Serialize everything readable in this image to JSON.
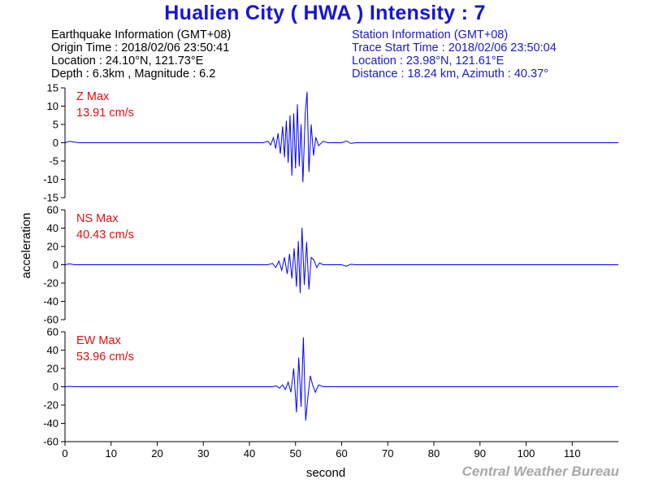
{
  "title": "Hualien City ( HWA ) Intensity : 7",
  "earthquake_info": {
    "heading": "Earthquake Information  (GMT+08)",
    "origin_time": "Origin Time : 2018/02/06 23:50:41",
    "location": "Location : 24.10°N, 121.73°E",
    "depth_magnitude": "Depth : 6.3km , Magnitude : 6.2"
  },
  "station_info": {
    "heading": "Station Information  (GMT+08)",
    "trace_start": "Trace Start Time : 2018/02/06 23:50:04",
    "location": "Location : 23.98°N, 121.61°E",
    "distance_azimuth": "Distance : 18.24 km, Azimuth : 40.37°"
  },
  "credit": "Central Weather Bureau",
  "colors": {
    "title": "#1515d8",
    "trace": "#0000ff",
    "max_label": "#e01010",
    "station": "#1a1acc",
    "credit": "#a8a8a8"
  },
  "chart_data": {
    "type": "line",
    "xlabel": "second",
    "ylabel": "acceleration",
    "xlim": [
      0,
      120
    ],
    "xticks": [
      0,
      10,
      20,
      30,
      40,
      50,
      60,
      70,
      80,
      90,
      100,
      110
    ],
    "panels": [
      {
        "name": "Z",
        "max_label": "Z Max",
        "max_value": "13.91 cm/s",
        "ylim": [
          -15,
          15
        ],
        "yticks": [
          15,
          10,
          5,
          0,
          -5,
          -10,
          -15
        ],
        "peak": 13.91,
        "points": [
          [
            0,
            0
          ],
          [
            1,
            0.4
          ],
          [
            2,
            0.2
          ],
          [
            3,
            0
          ],
          [
            43,
            0
          ],
          [
            44,
            0.4
          ],
          [
            44.6,
            -0.6
          ],
          [
            45.2,
            1.4
          ],
          [
            45.7,
            -1.6
          ],
          [
            46.2,
            2.6
          ],
          [
            46.7,
            -3
          ],
          [
            47.2,
            4.5
          ],
          [
            47.6,
            -4
          ],
          [
            48,
            6
          ],
          [
            48.4,
            -5.5
          ],
          [
            48.8,
            7.5
          ],
          [
            49.2,
            -9
          ],
          [
            49.6,
            8
          ],
          [
            50,
            -7
          ],
          [
            50.4,
            10.5
          ],
          [
            50.8,
            -6.5
          ],
          [
            51.2,
            5
          ],
          [
            51.6,
            -10.8
          ],
          [
            52.1,
            8
          ],
          [
            52.5,
            13.91
          ],
          [
            52.9,
            -8
          ],
          [
            53.4,
            5
          ],
          [
            53.9,
            -3.5
          ],
          [
            54.4,
            1.5
          ],
          [
            55,
            -0.8
          ],
          [
            56,
            0.4
          ],
          [
            57,
            0
          ],
          [
            60,
            0
          ],
          [
            61,
            0.5
          ],
          [
            62,
            -0.2
          ],
          [
            63,
            0
          ],
          [
            120,
            0
          ]
        ]
      },
      {
        "name": "NS",
        "max_label": "NS Max",
        "max_value": "40.43 cm/s",
        "ylim": [
          -60,
          60
        ],
        "yticks": [
          60,
          40,
          20,
          0,
          -20,
          -40,
          -60
        ],
        "peak": 40.43,
        "points": [
          [
            0,
            0
          ],
          [
            1,
            1
          ],
          [
            2,
            0
          ],
          [
            44,
            0
          ],
          [
            45,
            1.5
          ],
          [
            45.7,
            -3
          ],
          [
            46.4,
            4
          ],
          [
            47,
            -6
          ],
          [
            47.6,
            8
          ],
          [
            48.2,
            -10
          ],
          [
            48.7,
            12
          ],
          [
            49.2,
            -15
          ],
          [
            49.7,
            18
          ],
          [
            50.2,
            -24
          ],
          [
            50.6,
            26
          ],
          [
            51,
            -31
          ],
          [
            51.4,
            40.43
          ],
          [
            51.9,
            -22
          ],
          [
            52.4,
            25
          ],
          [
            52.9,
            -27
          ],
          [
            53.4,
            8
          ],
          [
            54,
            5
          ],
          [
            54.6,
            -3
          ],
          [
            55.2,
            2
          ],
          [
            56,
            0
          ],
          [
            60,
            0
          ],
          [
            61,
            -1.5
          ],
          [
            62,
            0.5
          ],
          [
            63,
            0
          ],
          [
            120,
            0
          ]
        ]
      },
      {
        "name": "EW",
        "max_label": "EW Max",
        "max_value": "53.96 cm/s",
        "ylim": [
          -60,
          60
        ],
        "yticks": [
          60,
          40,
          20,
          0,
          -20,
          -40,
          -60
        ],
        "peak": 53.96,
        "points": [
          [
            0,
            0
          ],
          [
            1,
            0.5
          ],
          [
            2,
            0
          ],
          [
            45,
            0
          ],
          [
            45.8,
            1
          ],
          [
            46.5,
            -1.5
          ],
          [
            47.2,
            2
          ],
          [
            47.8,
            -3
          ],
          [
            48.4,
            5
          ],
          [
            49,
            -6
          ],
          [
            49.6,
            20
          ],
          [
            50.2,
            -28
          ],
          [
            50.7,
            32
          ],
          [
            51.2,
            -22
          ],
          [
            51.7,
            53.96
          ],
          [
            52.2,
            -37
          ],
          [
            52.7,
            -10
          ],
          [
            53.2,
            12
          ],
          [
            53.7,
            2
          ],
          [
            54.3,
            -6
          ],
          [
            55,
            2
          ],
          [
            56,
            0
          ],
          [
            120,
            0
          ]
        ]
      }
    ]
  }
}
